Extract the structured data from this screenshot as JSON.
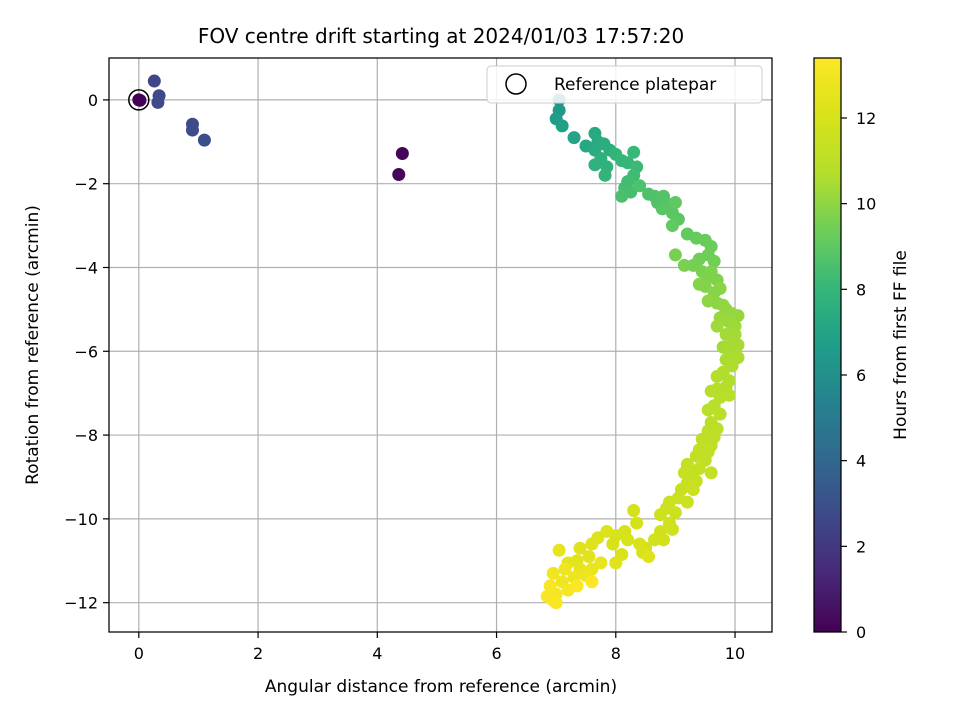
{
  "chart_data": {
    "type": "scatter",
    "title": "FOV centre drift starting at 2024/01/03 17:57:20",
    "xlabel": "Angular distance from reference (arcmin)",
    "ylabel": "Rotation from reference (arcmin)",
    "xlim": [
      -0.5,
      10.62
    ],
    "ylim": [
      -12.7,
      1.0
    ],
    "xticks": [
      0,
      2,
      4,
      6,
      8,
      10
    ],
    "yticks": [
      0,
      -2,
      -4,
      -6,
      -8,
      -10,
      -12
    ],
    "xtick_labels": [
      "0",
      "2",
      "4",
      "6",
      "8",
      "10"
    ],
    "ytick_labels": [
      "0",
      "−2",
      "−4",
      "−6",
      "−8",
      "−10",
      "−12"
    ],
    "grid": true,
    "colormap": "viridis",
    "colorbar": {
      "label": "Hours from first FF file",
      "range": [
        0,
        13.4
      ],
      "ticks": [
        0,
        2,
        4,
        6,
        8,
        10,
        12
      ],
      "tick_labels": [
        "0",
        "2",
        "4",
        "6",
        "8",
        "10",
        "12"
      ]
    },
    "legend": {
      "position": "top-right",
      "entries": [
        "Reference platepar"
      ]
    },
    "reference_point": {
      "x": 0,
      "y": 0
    },
    "segments": [
      {
        "t0": 0.0,
        "t1": 0.2,
        "points": [
          [
            0.0,
            0.0
          ],
          [
            0.02,
            -0.01
          ],
          [
            4.42,
            -1.28
          ],
          [
            4.36,
            -1.78
          ]
        ]
      },
      {
        "t0": 2.6,
        "t1": 2.9,
        "points": [
          [
            0.26,
            0.45
          ],
          [
            0.34,
            0.1
          ],
          [
            0.32,
            -0.06
          ],
          [
            0.9,
            -0.58
          ],
          [
            0.9,
            -0.72
          ],
          [
            1.1,
            -0.96
          ]
        ]
      },
      {
        "t0": 6.2,
        "t1": 7.2,
        "points": [
          [
            7.05,
            0.0
          ],
          [
            7.05,
            -0.25
          ],
          [
            7.0,
            -0.45
          ],
          [
            7.1,
            -0.62
          ],
          [
            7.3,
            -0.9
          ],
          [
            7.5,
            -1.1
          ]
        ]
      },
      {
        "t0": 7.3,
        "t1": 8.6,
        "points": [
          [
            7.65,
            -0.8
          ],
          [
            7.7,
            -1.0
          ],
          [
            7.65,
            -1.2
          ],
          [
            7.8,
            -1.05
          ],
          [
            7.9,
            -1.2
          ],
          [
            7.75,
            -1.4
          ],
          [
            7.65,
            -1.55
          ],
          [
            7.85,
            -1.6
          ],
          [
            7.82,
            -1.8
          ],
          [
            8.0,
            -1.3
          ],
          [
            8.1,
            -1.45
          ],
          [
            8.2,
            -1.5
          ],
          [
            8.3,
            -1.25
          ],
          [
            8.35,
            -1.6
          ],
          [
            8.3,
            -1.8
          ],
          [
            8.2,
            -1.95
          ],
          [
            8.15,
            -2.1
          ],
          [
            8.25,
            -2.2
          ],
          [
            8.1,
            -2.3
          ],
          [
            8.4,
            -2.05
          ]
        ]
      },
      {
        "t0": 8.6,
        "t1": 9.6,
        "points": [
          [
            8.55,
            -2.25
          ],
          [
            8.65,
            -2.3
          ],
          [
            8.7,
            -2.45
          ],
          [
            8.8,
            -2.3
          ],
          [
            8.9,
            -2.5
          ],
          [
            8.78,
            -2.6
          ],
          [
            8.95,
            -2.7
          ],
          [
            9.05,
            -2.85
          ],
          [
            9.0,
            -2.45
          ],
          [
            8.95,
            -3.0
          ],
          [
            9.2,
            -3.2
          ],
          [
            9.35,
            -3.3
          ],
          [
            9.5,
            -3.35
          ],
          [
            9.6,
            -3.5
          ],
          [
            9.55,
            -3.7
          ],
          [
            9.4,
            -3.8
          ],
          [
            9.65,
            -3.85
          ],
          [
            9.3,
            -3.95
          ],
          [
            9.0,
            -3.7
          ],
          [
            9.15,
            -3.95
          ]
        ]
      },
      {
        "t0": 9.6,
        "t1": 10.4,
        "points": [
          [
            9.45,
            -4.1
          ],
          [
            9.55,
            -4.25
          ],
          [
            9.6,
            -4.1
          ],
          [
            9.7,
            -4.3
          ],
          [
            9.5,
            -4.45
          ],
          [
            9.4,
            -4.4
          ],
          [
            9.65,
            -4.6
          ],
          [
            9.75,
            -4.5
          ],
          [
            9.55,
            -4.8
          ],
          [
            9.7,
            -4.85
          ],
          [
            9.8,
            -4.9
          ],
          [
            9.85,
            -5.0
          ],
          [
            9.95,
            -5.1
          ],
          [
            10.05,
            -5.15
          ],
          [
            9.75,
            -5.2
          ],
          [
            9.9,
            -5.3
          ],
          [
            10.0,
            -5.4
          ],
          [
            9.7,
            -5.4
          ],
          [
            9.85,
            -5.6
          ],
          [
            10.0,
            -5.6
          ]
        ]
      },
      {
        "t0": 10.4,
        "t1": 11.0,
        "points": [
          [
            9.8,
            -5.9
          ],
          [
            9.95,
            -5.75
          ],
          [
            10.05,
            -5.85
          ],
          [
            9.9,
            -6.0
          ],
          [
            9.85,
            -6.2
          ],
          [
            10.05,
            -6.15
          ],
          [
            9.95,
            -6.35
          ],
          [
            9.8,
            -6.5
          ],
          [
            9.9,
            -6.7
          ],
          [
            9.7,
            -6.6
          ],
          [
            9.85,
            -6.85
          ],
          [
            9.7,
            -6.9
          ],
          [
            9.6,
            -6.95
          ],
          [
            9.75,
            -7.1
          ],
          [
            9.9,
            -7.05
          ],
          [
            9.65,
            -7.3
          ],
          [
            9.55,
            -7.4
          ],
          [
            9.75,
            -7.5
          ],
          [
            9.6,
            -7.7
          ],
          [
            9.7,
            -7.85
          ]
        ]
      },
      {
        "t0": 11.0,
        "t1": 11.6,
        "points": [
          [
            9.55,
            -7.9
          ],
          [
            9.65,
            -8.05
          ],
          [
            9.45,
            -8.1
          ],
          [
            9.6,
            -8.25
          ],
          [
            9.4,
            -8.35
          ],
          [
            9.55,
            -8.4
          ],
          [
            9.5,
            -8.6
          ],
          [
            9.35,
            -8.5
          ],
          [
            9.2,
            -8.7
          ],
          [
            9.4,
            -8.8
          ],
          [
            9.6,
            -8.9
          ],
          [
            9.3,
            -8.9
          ],
          [
            9.15,
            -8.9
          ],
          [
            9.35,
            -9.1
          ],
          [
            9.2,
            -9.15
          ],
          [
            9.1,
            -9.3
          ],
          [
            9.3,
            -9.3
          ],
          [
            9.05,
            -9.5
          ],
          [
            8.9,
            -9.6
          ],
          [
            9.2,
            -9.6
          ]
        ]
      },
      {
        "t0": 11.6,
        "t1": 12.3,
        "points": [
          [
            8.85,
            -9.75
          ],
          [
            8.75,
            -9.9
          ],
          [
            9.0,
            -9.85
          ],
          [
            8.9,
            -10.1
          ],
          [
            8.75,
            -10.3
          ],
          [
            8.95,
            -10.25
          ],
          [
            8.65,
            -10.5
          ],
          [
            8.8,
            -10.5
          ],
          [
            8.5,
            -10.7
          ],
          [
            8.3,
            -9.8
          ],
          [
            8.35,
            -10.1
          ],
          [
            8.15,
            -10.3
          ],
          [
            8.0,
            -10.4
          ],
          [
            7.95,
            -10.6
          ],
          [
            8.2,
            -10.5
          ],
          [
            8.4,
            -10.6
          ],
          [
            8.45,
            -10.8
          ],
          [
            8.1,
            -10.85
          ],
          [
            7.85,
            -10.3
          ],
          [
            7.7,
            -10.45
          ],
          [
            8.55,
            -10.9
          ],
          [
            8.0,
            -11.05
          ]
        ]
      },
      {
        "t0": 12.3,
        "t1": 13.4,
        "points": [
          [
            7.6,
            -10.6
          ],
          [
            7.4,
            -10.7
          ],
          [
            7.55,
            -10.9
          ],
          [
            7.35,
            -11.0
          ],
          [
            7.2,
            -11.05
          ],
          [
            7.05,
            -10.75
          ],
          [
            7.4,
            -11.2
          ],
          [
            7.6,
            -11.2
          ],
          [
            7.75,
            -11.05
          ],
          [
            7.5,
            -11.35
          ],
          [
            7.3,
            -11.4
          ],
          [
            7.15,
            -11.2
          ],
          [
            7.1,
            -11.5
          ],
          [
            6.95,
            -11.3
          ],
          [
            7.2,
            -11.7
          ],
          [
            7.0,
            -11.8
          ],
          [
            6.9,
            -11.6
          ],
          [
            6.85,
            -11.85
          ],
          [
            7.0,
            -12.0
          ],
          [
            6.95,
            -11.95
          ],
          [
            7.35,
            -11.6
          ],
          [
            7.6,
            -11.5
          ]
        ]
      }
    ]
  }
}
